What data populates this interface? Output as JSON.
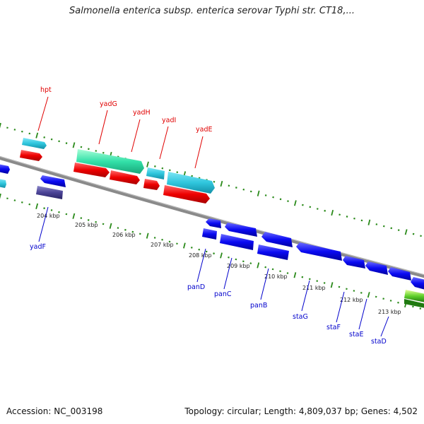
{
  "title": "Salmonella enterica subsp. enterica serovar Typhi str. CT18,...",
  "footer": {
    "accession": "Accession: NC_003198",
    "summary": "Topology: circular; Length: 4,809,037 bp; Genes: 4,502"
  },
  "colors": {
    "backbone": "#8a8a8a",
    "tick_green": "#2a8a1a",
    "label_red": "#e00000",
    "label_blue": "#0000cc",
    "kbp_text": "#222222"
  },
  "scale_labels": [
    "204 kbp",
    "205 kbp",
    "206 kbp",
    "207 kbp",
    "208 kbp",
    "209 kbp",
    "210 kbp",
    "211 kbp",
    "212 kbp",
    "213 kbp"
  ],
  "genes_top": [
    "hpt",
    "yadG",
    "yadH",
    "yadI",
    "yadE"
  ],
  "genes_bottom": [
    "yadF",
    "panD",
    "panC",
    "panB",
    "staG",
    "staF",
    "staE",
    "staD"
  ]
}
